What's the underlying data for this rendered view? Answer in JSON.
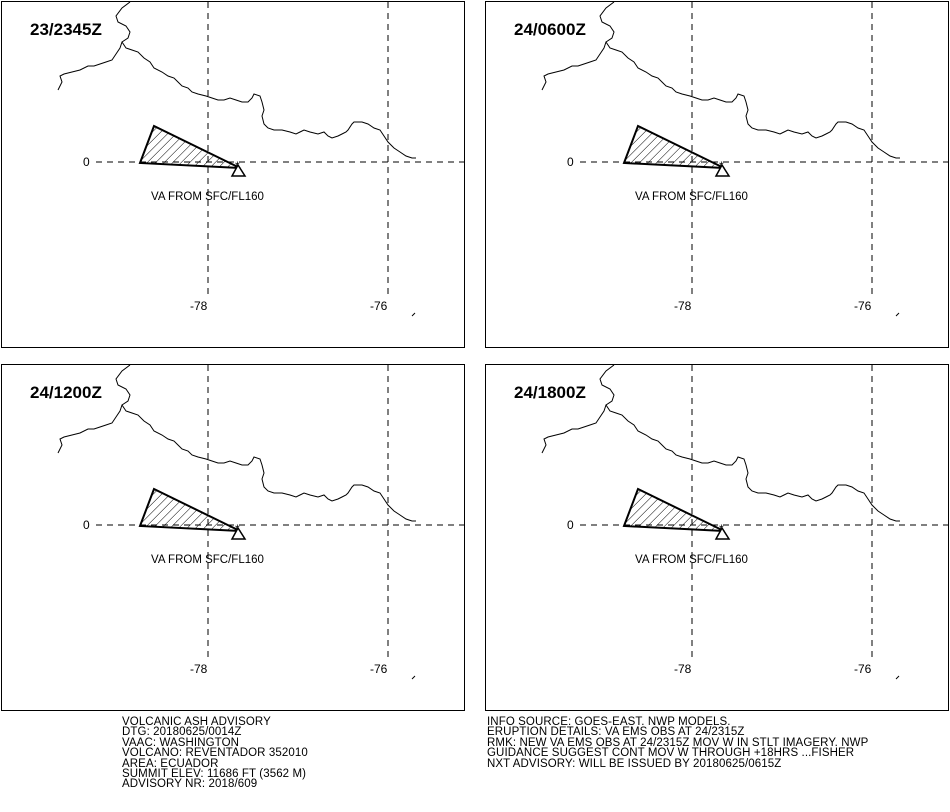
{
  "panels": [
    {
      "title": "23/2345Z",
      "label": "VA FROM SFC/FL160"
    },
    {
      "title": "24/0600Z",
      "label": "VA FROM SFC/FL160"
    },
    {
      "title": "24/1200Z",
      "label": "VA FROM SFC/FL160"
    },
    {
      "title": "24/1800Z",
      "label": "VA FROM SFC/FL160"
    }
  ],
  "grid": {
    "lat_label": "0",
    "lon_labels": [
      "-78",
      "-76"
    ]
  },
  "advisory": {
    "header": "VOLCANIC ASH ADVISORY",
    "dtg": "DTG: 20180625/0014Z",
    "vaac": "VAAC: WASHINGTON",
    "volcano": "VOLCANO: REVENTADOR 352010",
    "area": "AREA: ECUADOR",
    "summit": "SUMMIT ELEV: 11686 FT (3562 M)",
    "nr": "ADVISORY NR: 2018/609"
  },
  "info": {
    "source": "INFO SOURCE: GOES-EAST. NWP MODELS.",
    "eruption": "ERUPTION DETAILS: VA EMS OBS AT 24/2315Z",
    "rmk1": "RMK: NEW VA EMS OBS AT 24/2315Z MOV W IN STLT IMAGERY. NWP",
    "rmk2": "GUIDANCE SUGGEST CONT MOV W THROUGH +18HRS ...FISHER",
    "nxt": "NXT ADVISORY: WILL BE ISSUED BY 20180625/0615Z"
  }
}
